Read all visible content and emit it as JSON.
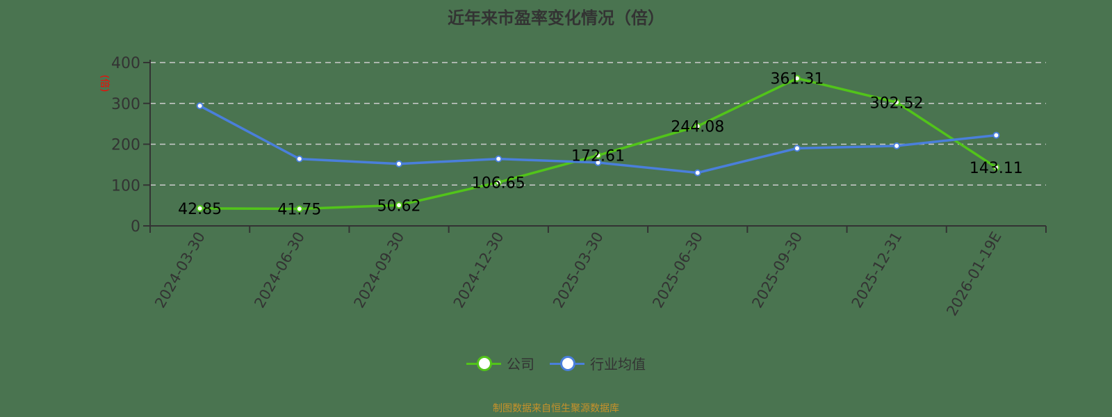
{
  "title": "近年来市盈率变化情况（倍）",
  "y_axis_unit": "(倍)",
  "legend": [
    {
      "label": "公司",
      "color": "#52c41a"
    },
    {
      "label": "行业均值",
      "color": "#4a7fdb"
    }
  ],
  "source": "制图数据来自恒生聚源数据库",
  "colors": {
    "background": "#4a7450",
    "company": "#52c41a",
    "industry": "#4a7fdb",
    "axis": "#333333",
    "grid": "#cccccc",
    "unit": "#ff0000",
    "source": "#c8922a"
  },
  "chart_data": {
    "type": "line",
    "title": "近年来市盈率变化情况（倍）",
    "xlabel": "",
    "ylabel": "(倍)",
    "ylim": [
      0,
      400
    ],
    "yticks": [
      0,
      100,
      200,
      300,
      400
    ],
    "grid": true,
    "legend_position": "bottom",
    "categories": [
      "2024-03-30",
      "2024-06-30",
      "2024-09-30",
      "2024-12-30",
      "2025-03-30",
      "2025-06-30",
      "2025-09-30",
      "2025-12-31",
      "2026-01-19E"
    ],
    "series": [
      {
        "name": "公司",
        "values": [
          42.85,
          41.75,
          50.62,
          106.65,
          172.61,
          244.08,
          361.31,
          302.52,
          143.11
        ],
        "labels": [
          "42.85",
          "41.75",
          "50.62",
          "106.65",
          "172.61",
          "244.08",
          "361.31",
          "302.52",
          "143.11"
        ]
      },
      {
        "name": "行业均值",
        "values": [
          294,
          164,
          152,
          164,
          155,
          130,
          190,
          196,
          222
        ]
      }
    ]
  }
}
